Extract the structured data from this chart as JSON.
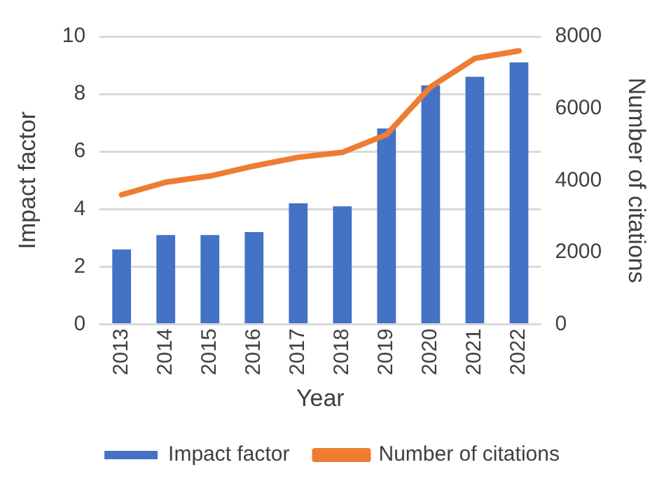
{
  "chart_data": {
    "type": "bar",
    "xlabel": "Year",
    "ylabel": "Impact factor",
    "y2label": "Number of citations",
    "categories": [
      "2013",
      "2014",
      "2015",
      "2016",
      "2017",
      "2018",
      "2019",
      "2020",
      "2021",
      "2022"
    ],
    "series": [
      {
        "name": "Impact factor",
        "color": "#4472c4",
        "values": [
          2.6,
          3.1,
          3.1,
          3.2,
          4.2,
          4.1,
          6.8,
          8.3,
          8.6,
          9.1
        ]
      },
      {
        "name": "Number of citations",
        "type": "line",
        "axis": "y2",
        "color": "#ed7d31",
        "values": [
          3600,
          3950,
          4120,
          4400,
          4640,
          4780,
          5270,
          6600,
          7390,
          7600
        ]
      }
    ],
    "ylim": [
      0,
      10
    ],
    "yticks": [
      0,
      2,
      4,
      6,
      8,
      10
    ],
    "y2lim": [
      0,
      8000
    ],
    "y2ticks": [
      0,
      2000,
      4000,
      6000,
      8000
    ],
    "grid": "y",
    "legend": "bottom",
    "marker": "none"
  }
}
